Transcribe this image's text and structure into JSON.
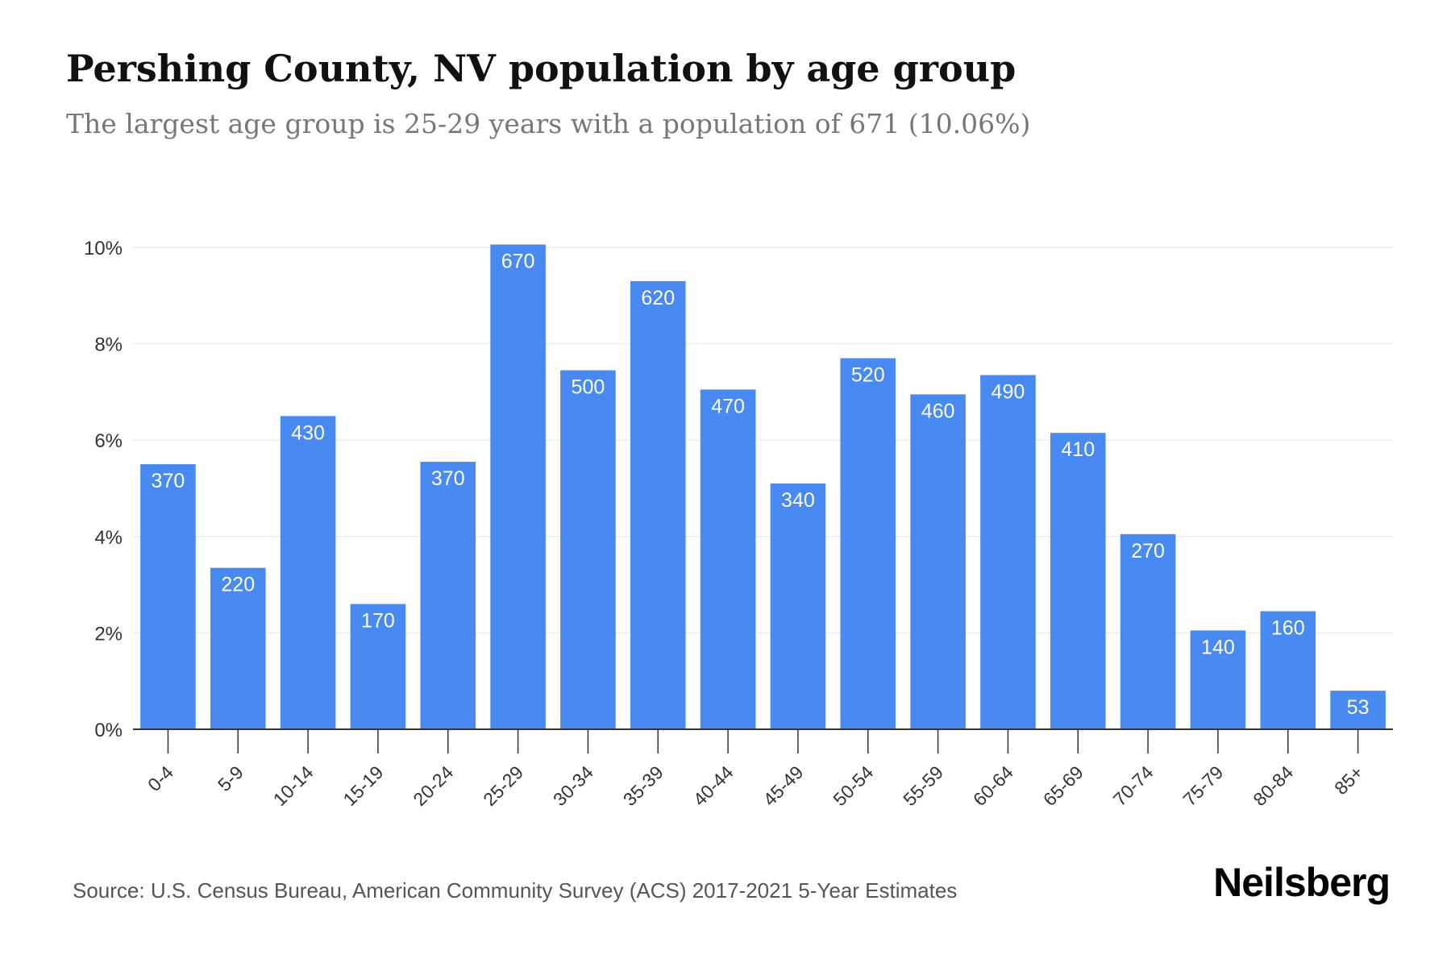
{
  "header": {
    "title": "Pershing County, NV population by age group",
    "subtitle": "The largest age group is 25-29 years with a population of 671 (10.06%)"
  },
  "footer": {
    "source": "Source: U.S. Census Bureau, American Community Survey (ACS) 2017-2021 5-Year Estimates",
    "brand": "Neilsberg"
  },
  "colors": {
    "bar": "#4889f2",
    "bar_label": "#ffffff",
    "grid": "#eeeeee",
    "axis": "#333333",
    "tick_text": "#333333"
  },
  "chart_data": {
    "type": "bar",
    "categories": [
      "0-4",
      "5-9",
      "10-14",
      "15-19",
      "20-24",
      "25-29",
      "30-34",
      "35-39",
      "40-44",
      "45-49",
      "50-54",
      "55-59",
      "60-64",
      "65-69",
      "70-74",
      "75-79",
      "80-84",
      "85+"
    ],
    "values": [
      5.5,
      3.35,
      6.5,
      2.6,
      5.55,
      10.06,
      7.45,
      9.3,
      7.05,
      5.1,
      7.7,
      6.95,
      7.35,
      6.15,
      4.05,
      2.05,
      2.45,
      0.8
    ],
    "data_labels": [
      "370",
      "220",
      "430",
      "170",
      "370",
      "670",
      "500",
      "620",
      "470",
      "340",
      "520",
      "460",
      "490",
      "410",
      "270",
      "140",
      "160",
      "53"
    ],
    "y_ticks": [
      "0%",
      "2%",
      "4%",
      "6%",
      "8%",
      "10%"
    ],
    "y_tick_values": [
      0,
      2,
      4,
      6,
      8,
      10
    ],
    "ylim": [
      0,
      10
    ],
    "xlabel": "",
    "ylabel": "",
    "grid": true,
    "legend": "none"
  }
}
